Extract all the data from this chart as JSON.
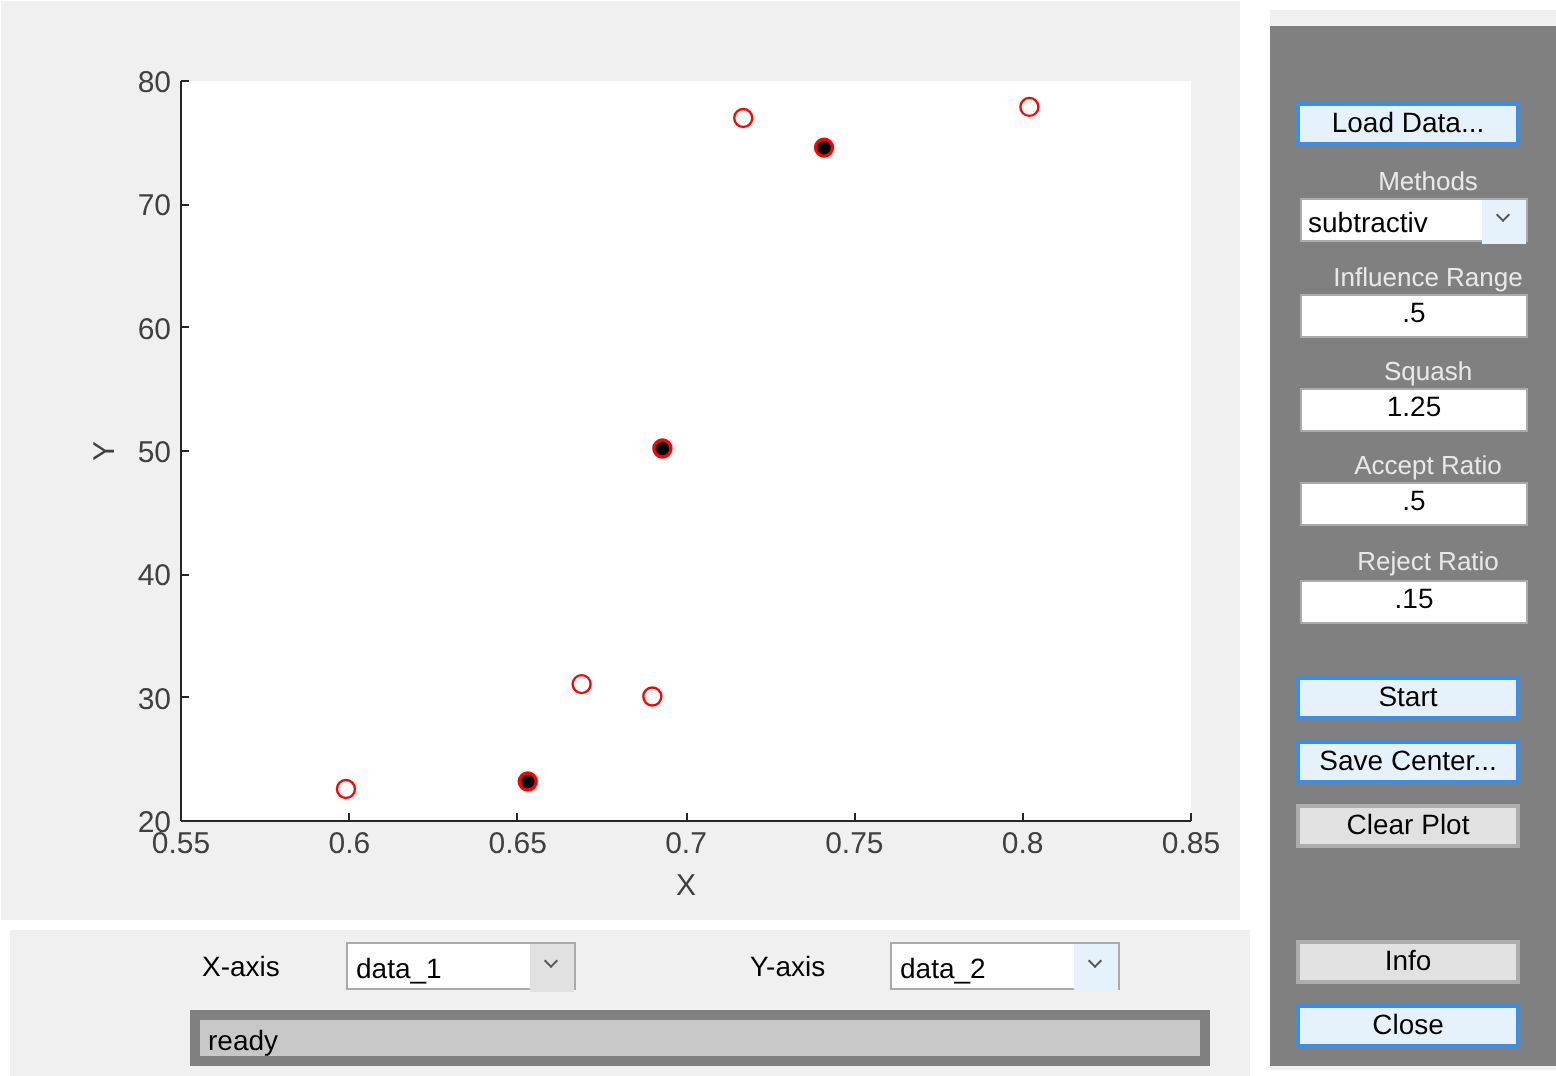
{
  "chart_data": {
    "type": "scatter",
    "xlabel": "X",
    "ylabel": "Y",
    "xlim": [
      0.55,
      0.85
    ],
    "xticks": [
      0.55,
      0.6,
      0.65,
      0.7,
      0.75,
      0.8,
      0.85
    ],
    "ylim": [
      20,
      80
    ],
    "yticks": [
      20,
      30,
      40,
      50,
      60,
      70,
      80
    ],
    "grid": false,
    "marker": "circle",
    "series": [
      {
        "color": "#ff0000",
        "x": [
          0.599,
          0.653,
          0.669,
          0.69,
          0.693,
          0.717,
          0.741,
          0.802
        ],
        "values": [
          22.6,
          23.2,
          31.1,
          30.1,
          50.2,
          77.0,
          74.6,
          77.9
        ]
      },
      {
        "color": "#000000",
        "x": [
          0.653,
          0.693,
          0.741
        ],
        "values": [
          23.2,
          50.2,
          74.6
        ]
      }
    ],
    "annotations": [
      "Load Data...",
      "Methods",
      "subtractiv",
      "Influence Range",
      ".5",
      "Squash",
      "1.25",
      "Accept Ratio",
      ".5",
      "Reject Ratio",
      ".15",
      "Start",
      "Save Center...",
      "Clear Plot",
      "Info",
      "Close",
      "X-axis",
      "data_1",
      "Y-axis",
      "data_2",
      "ready"
    ]
  }
}
